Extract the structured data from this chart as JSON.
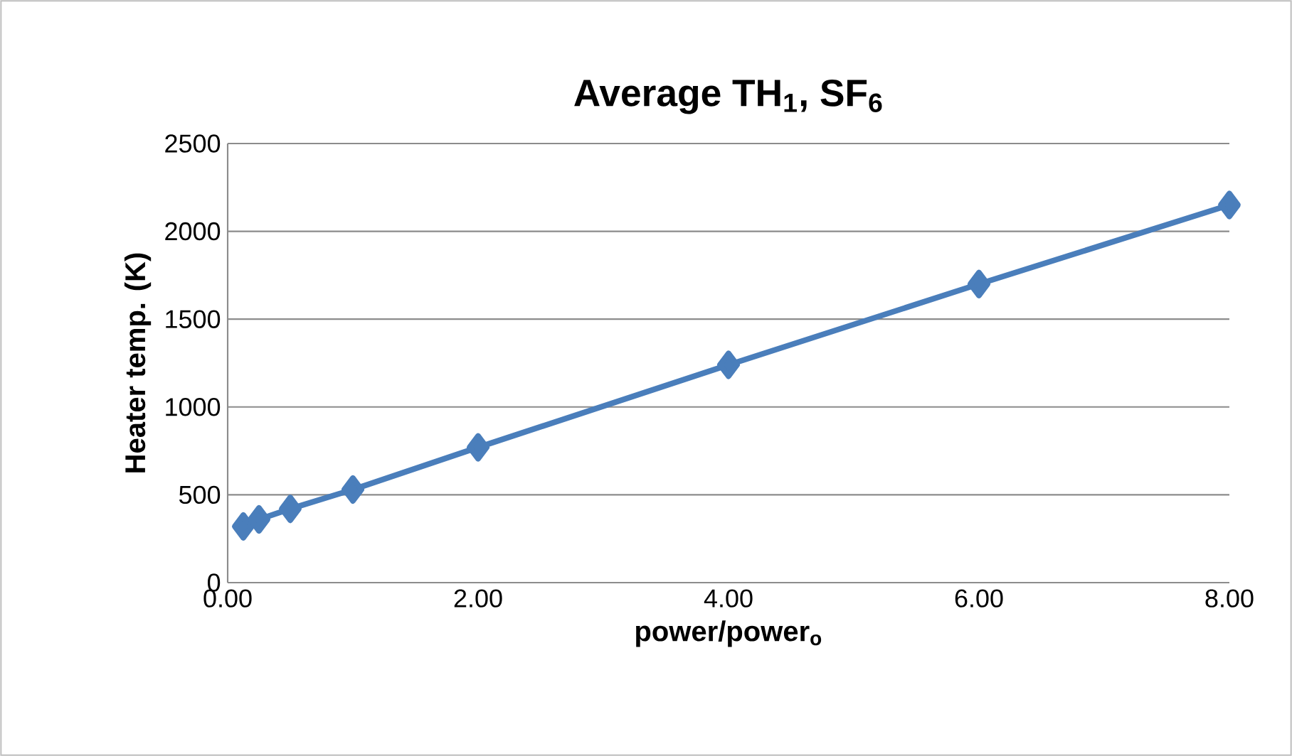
{
  "chart_data": {
    "type": "line",
    "title": "Average TH$_{1}$, SF$_{6}$",
    "xlabel": "power/power$_{o}$",
    "ylabel": "Heater temp. (K)",
    "x": [
      0.125,
      0.25,
      0.5,
      1,
      2,
      4,
      6,
      8
    ],
    "series": [
      {
        "color": "#4a7ebb",
        "values": [
          320,
          360,
          420,
          530,
          770,
          1240,
          1700,
          2150
        ]
      }
    ],
    "xlim": [
      0,
      8
    ],
    "ylim": [
      0,
      2500
    ],
    "xticks": [
      {
        "value": 0,
        "label": "0.00"
      },
      {
        "value": 2,
        "label": "2.00"
      },
      {
        "value": 4,
        "label": "4.00"
      },
      {
        "value": 6,
        "label": "6.00"
      },
      {
        "value": 8,
        "label": "8.00"
      }
    ],
    "yticks": [
      0,
      500,
      1000,
      1500,
      2000,
      2500
    ],
    "grid": "y",
    "marker": "diamond",
    "line_style": "solid"
  }
}
